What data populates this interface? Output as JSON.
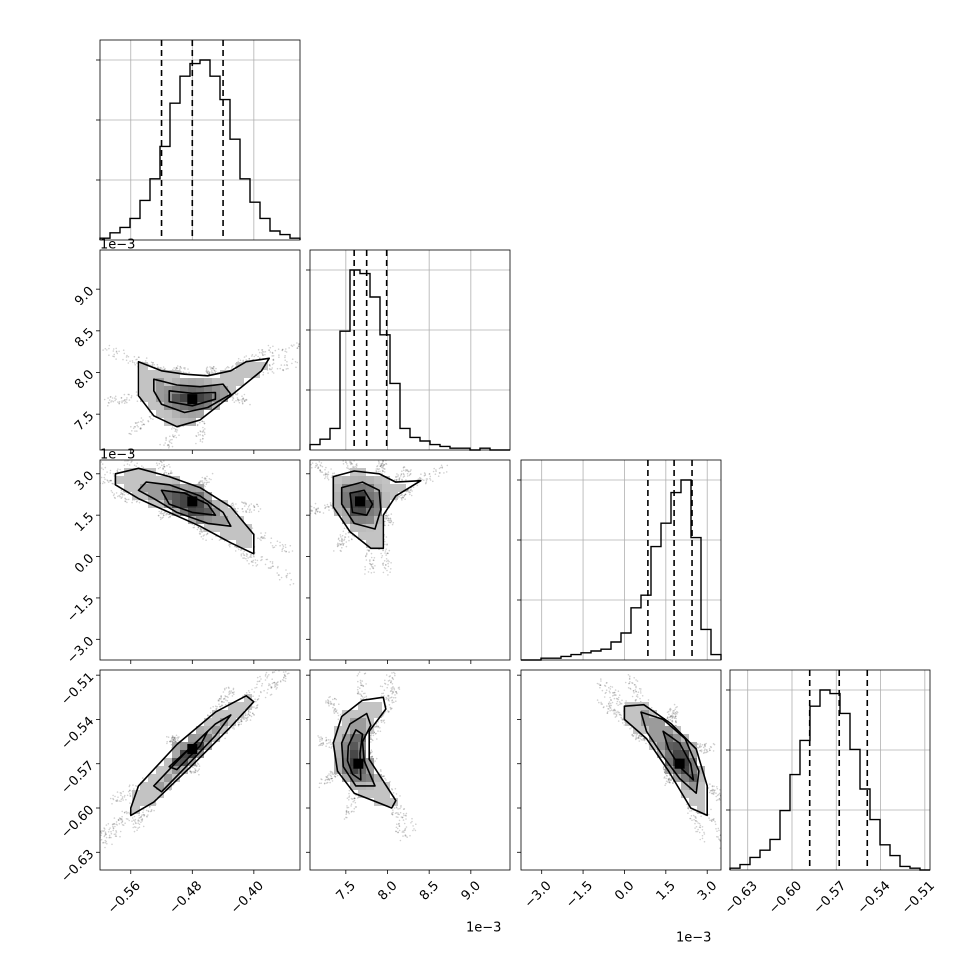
{
  "chart_data": {
    "type": "corner",
    "grid": true,
    "colors": {
      "line": "#000000",
      "grid": "#b0b0b0",
      "scatter": "#000000",
      "background": "#ffffff"
    },
    "parameters": [
      {
        "id": "p1",
        "range": [
          -0.6,
          -0.34
        ],
        "ticks": [
          -0.56,
          -0.48,
          -0.4
        ],
        "tick_labels": [
          "−0.56",
          "−0.48",
          "−0.40"
        ],
        "offset_label": ""
      },
      {
        "id": "p2",
        "range": [
          7.07,
          9.47
        ],
        "ticks": [
          7.5,
          8.0,
          8.5,
          9.0
        ],
        "tick_labels": [
          "7.5",
          "8.0",
          "8.5",
          "9.0"
        ],
        "offset_label": "1e−3"
      },
      {
        "id": "p3",
        "range": [
          -3.75,
          3.5
        ],
        "ticks": [
          -3.0,
          -1.5,
          0.0,
          1.5,
          3.0
        ],
        "tick_labels": [
          "−3.0",
          "−1.5",
          "0.0",
          "1.5",
          "3.0"
        ],
        "offset_label": "1e−3"
      },
      {
        "id": "p4",
        "range": [
          -0.642,
          -0.5065
        ],
        "ticks": [
          -0.63,
          -0.6,
          -0.57,
          -0.54,
          -0.51
        ],
        "tick_labels": [
          "−0.63",
          "−0.60",
          "−0.57",
          "−0.54",
          "−0.51"
        ],
        "offset_label": ""
      }
    ],
    "histograms": [
      {
        "param": 0,
        "bin_edges_range": [
          -0.6,
          -0.34
        ],
        "counts": [
          0.01,
          0.04,
          0.07,
          0.12,
          0.22,
          0.34,
          0.52,
          0.76,
          0.91,
          0.98,
          1.0,
          0.91,
          0.78,
          0.56,
          0.34,
          0.21,
          0.12,
          0.05,
          0.03,
          0.01
        ],
        "quantiles": [
          -0.52,
          -0.48,
          -0.44
        ]
      },
      {
        "param": 1,
        "bin_edges_range": [
          7.07,
          9.47
        ],
        "counts": [
          0.03,
          0.06,
          0.12,
          0.66,
          1.0,
          0.98,
          0.85,
          0.64,
          0.37,
          0.12,
          0.07,
          0.05,
          0.03,
          0.02,
          0.01,
          0.01,
          0.0,
          0.01,
          0.0,
          0.0
        ],
        "quantiles": [
          7.6,
          7.75,
          7.99
        ]
      },
      {
        "param": 2,
        "bin_edges_range": [
          -3.75,
          3.5
        ],
        "counts": [
          0.0,
          0.0,
          0.01,
          0.01,
          0.02,
          0.03,
          0.04,
          0.05,
          0.06,
          0.1,
          0.15,
          0.29,
          0.36,
          0.63,
          0.76,
          0.93,
          1.0,
          0.68,
          0.17,
          0.03
        ],
        "quantiles": [
          0.85,
          1.8,
          2.45
        ]
      },
      {
        "param": 3,
        "bin_edges_range": [
          -0.642,
          -0.5065
        ],
        "counts": [
          0.01,
          0.03,
          0.07,
          0.11,
          0.17,
          0.33,
          0.53,
          0.72,
          0.91,
          1.0,
          0.98,
          0.87,
          0.67,
          0.45,
          0.28,
          0.14,
          0.08,
          0.02,
          0.01,
          0.0
        ],
        "quantiles": [
          -0.588,
          -0.568,
          -0.549
        ]
      }
    ],
    "pairs": [
      {
        "x": 0,
        "y": 1,
        "mode": {
          "x": -0.48,
          "y": 7.68
        },
        "contours": [
          [
            [
              -0.55,
              8.13
            ],
            [
              -0.52,
              8.02
            ],
            [
              -0.49,
              7.98
            ],
            [
              -0.46,
              7.96
            ],
            [
              -0.43,
              8.02
            ],
            [
              -0.41,
              8.13
            ],
            [
              -0.38,
              8.17
            ],
            [
              -0.39,
              8.02
            ],
            [
              -0.43,
              7.72
            ],
            [
              -0.47,
              7.43
            ],
            [
              -0.5,
              7.35
            ],
            [
              -0.53,
              7.48
            ],
            [
              -0.55,
              7.72
            ]
          ],
          [
            [
              -0.53,
              7.92
            ],
            [
              -0.5,
              7.85
            ],
            [
              -0.47,
              7.83
            ],
            [
              -0.44,
              7.86
            ],
            [
              -0.43,
              7.74
            ],
            [
              -0.46,
              7.58
            ],
            [
              -0.49,
              7.52
            ],
            [
              -0.52,
              7.62
            ],
            [
              -0.53,
              7.78
            ]
          ],
          [
            [
              -0.51,
              7.78
            ],
            [
              -0.48,
              7.75
            ],
            [
              -0.45,
              7.76
            ],
            [
              -0.45,
              7.68
            ],
            [
              -0.48,
              7.6
            ],
            [
              -0.51,
              7.65
            ]
          ]
        ]
      },
      {
        "x": 0,
        "y": 2,
        "mode": {
          "x": -0.48,
          "y": 2.0
        },
        "contours": [
          [
            [
              -0.58,
              3.0
            ],
            [
              -0.55,
              3.2
            ],
            [
              -0.51,
              2.9
            ],
            [
              -0.47,
              2.5
            ],
            [
              -0.43,
              1.8
            ],
            [
              -0.4,
              0.8
            ],
            [
              -0.4,
              0.1
            ],
            [
              -0.43,
              0.5
            ],
            [
              -0.47,
              1.1
            ],
            [
              -0.51,
              1.6
            ],
            [
              -0.55,
              2.1
            ],
            [
              -0.58,
              2.6
            ]
          ],
          [
            [
              -0.54,
              2.7
            ],
            [
              -0.51,
              2.6
            ],
            [
              -0.47,
              2.2
            ],
            [
              -0.44,
              1.6
            ],
            [
              -0.43,
              1.1
            ],
            [
              -0.46,
              1.2
            ],
            [
              -0.5,
              1.6
            ],
            [
              -0.53,
              2.1
            ],
            [
              -0.55,
              2.4
            ]
          ],
          [
            [
              -0.52,
              2.4
            ],
            [
              -0.49,
              2.3
            ],
            [
              -0.46,
              1.9
            ],
            [
              -0.45,
              1.5
            ],
            [
              -0.48,
              1.6
            ],
            [
              -0.51,
              1.9
            ]
          ]
        ]
      },
      {
        "x": 0,
        "y": 3,
        "mode": {
          "x": -0.48,
          "y": -0.56
        },
        "contours": [
          [
            [
              -0.56,
              -0.6
            ],
            [
              -0.55,
              -0.585
            ],
            [
              -0.5,
              -0.557
            ],
            [
              -0.45,
              -0.535
            ],
            [
              -0.41,
              -0.524
            ],
            [
              -0.4,
              -0.528
            ],
            [
              -0.43,
              -0.545
            ],
            [
              -0.48,
              -0.571
            ],
            [
              -0.53,
              -0.596
            ],
            [
              -0.56,
              -0.605
            ]
          ],
          [
            [
              -0.53,
              -0.585
            ],
            [
              -0.49,
              -0.563
            ],
            [
              -0.45,
              -0.543
            ],
            [
              -0.43,
              -0.537
            ],
            [
              -0.45,
              -0.551
            ],
            [
              -0.49,
              -0.573
            ],
            [
              -0.52,
              -0.589
            ]
          ],
          [
            [
              -0.51,
              -0.572
            ],
            [
              -0.48,
              -0.558
            ],
            [
              -0.46,
              -0.548
            ],
            [
              -0.47,
              -0.558
            ],
            [
              -0.5,
              -0.574
            ]
          ]
        ]
      },
      {
        "x": 1,
        "y": 2,
        "mode": {
          "x": 7.67,
          "y": 2.0
        },
        "contours": [
          [
            [
              7.35,
              2.9
            ],
            [
              7.6,
              3.1
            ],
            [
              7.9,
              3.0
            ],
            [
              8.1,
              2.7
            ],
            [
              8.4,
              2.75
            ],
            [
              8.1,
              2.2
            ],
            [
              7.95,
              1.5
            ],
            [
              7.95,
              0.3
            ],
            [
              7.8,
              0.3
            ],
            [
              7.55,
              0.9
            ],
            [
              7.35,
              1.8
            ]
          ],
          [
            [
              7.45,
              2.5
            ],
            [
              7.7,
              2.7
            ],
            [
              7.9,
              2.4
            ],
            [
              7.92,
              1.7
            ],
            [
              7.85,
              1.0
            ],
            [
              7.6,
              1.2
            ],
            [
              7.45,
              1.9
            ]
          ],
          [
            [
              7.55,
              2.3
            ],
            [
              7.72,
              2.4
            ],
            [
              7.82,
              1.9
            ],
            [
              7.75,
              1.5
            ],
            [
              7.58,
              1.6
            ]
          ]
        ]
      },
      {
        "x": 1,
        "y": 3,
        "mode": {
          "x": 7.65,
          "y": -0.57
        },
        "contours": [
          [
            [
              7.35,
              -0.556
            ],
            [
              7.45,
              -0.538
            ],
            [
              7.7,
              -0.527
            ],
            [
              7.95,
              -0.525
            ],
            [
              7.98,
              -0.533
            ],
            [
              7.78,
              -0.548
            ],
            [
              7.78,
              -0.567
            ],
            [
              8.1,
              -0.595
            ],
            [
              8.05,
              -0.6
            ],
            [
              7.6,
              -0.59
            ],
            [
              7.4,
              -0.575
            ]
          ],
          [
            [
              7.45,
              -0.556
            ],
            [
              7.55,
              -0.543
            ],
            [
              7.75,
              -0.536
            ],
            [
              7.8,
              -0.544
            ],
            [
              7.7,
              -0.555
            ],
            [
              7.72,
              -0.568
            ],
            [
              7.85,
              -0.585
            ],
            [
              7.62,
              -0.585
            ],
            [
              7.47,
              -0.572
            ]
          ],
          [
            [
              7.53,
              -0.558
            ],
            [
              7.62,
              -0.547
            ],
            [
              7.7,
              -0.55
            ],
            [
              7.67,
              -0.563
            ],
            [
              7.68,
              -0.581
            ],
            [
              7.58,
              -0.577
            ],
            [
              7.52,
              -0.568
            ]
          ]
        ]
      },
      {
        "x": 2,
        "y": 3,
        "mode": {
          "x": 2.0,
          "y": -0.57
        },
        "contours": [
          [
            [
              0.0,
              -0.531
            ],
            [
              0.7,
              -0.53
            ],
            [
              1.7,
              -0.543
            ],
            [
              2.6,
              -0.56
            ],
            [
              3.0,
              -0.585
            ],
            [
              3.0,
              -0.605
            ],
            [
              2.4,
              -0.6
            ],
            [
              1.6,
              -0.575
            ],
            [
              0.8,
              -0.553
            ],
            [
              0.0,
              -0.54
            ]
          ],
          [
            [
              0.6,
              -0.535
            ],
            [
              1.4,
              -0.54
            ],
            [
              2.2,
              -0.553
            ],
            [
              2.7,
              -0.575
            ],
            [
              2.6,
              -0.59
            ],
            [
              2.0,
              -0.58
            ],
            [
              1.4,
              -0.565
            ],
            [
              0.8,
              -0.548
            ]
          ],
          [
            [
              1.4,
              -0.548
            ],
            [
              2.0,
              -0.556
            ],
            [
              2.4,
              -0.57
            ],
            [
              2.5,
              -0.581
            ],
            [
              2.0,
              -0.572
            ],
            [
              1.6,
              -0.56
            ]
          ]
        ]
      }
    ]
  }
}
